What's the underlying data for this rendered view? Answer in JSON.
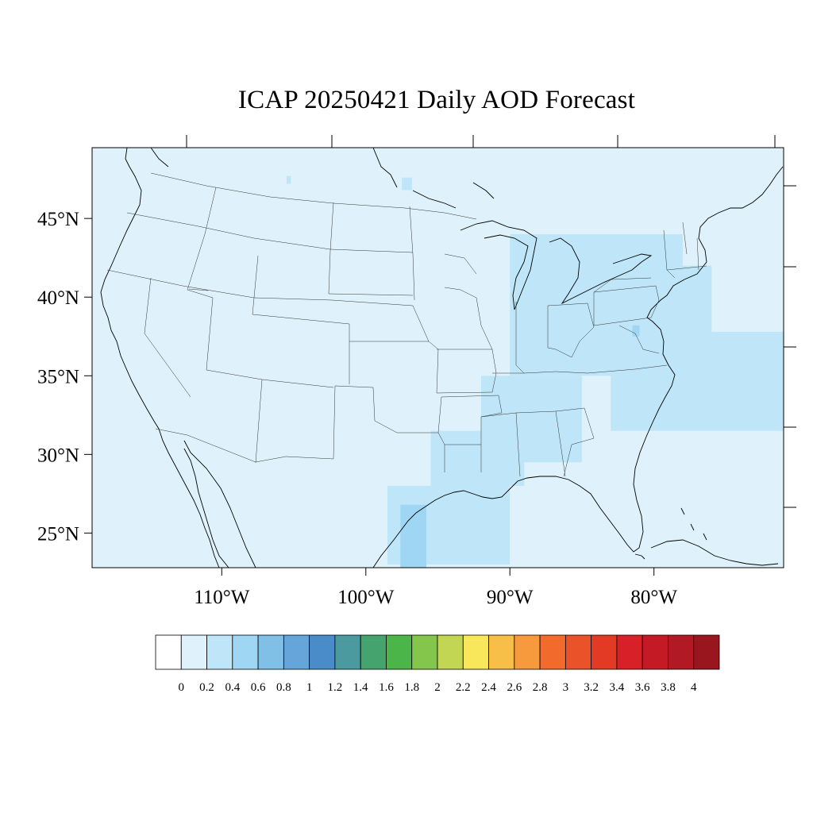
{
  "title": "ICAP 20250421 Daily AOD Forecast",
  "colors": {
    "ocean_background": "#dff2fb",
    "level_0_2_to_0_4": "#bfe6f8",
    "level_0_4_to_0_6": "#9fd6f3"
  },
  "map": {
    "lon_range": [
      -119,
      -71
    ],
    "lat_range": [
      22.8,
      49.5
    ],
    "lat_ticks": [
      {
        "value": 45,
        "label": "45°N"
      },
      {
        "value": 40,
        "label": "40°N"
      },
      {
        "value": 35,
        "label": "35°N"
      },
      {
        "value": 30,
        "label": "30°N"
      },
      {
        "value": 25,
        "label": "25°N"
      }
    ],
    "lon_ticks": [
      {
        "value": -110,
        "label": "110°W"
      },
      {
        "value": -100,
        "label": "100°W"
      },
      {
        "value": -90,
        "label": "90°W"
      },
      {
        "value": -80,
        "label": "80°W"
      }
    ]
  },
  "aod_regions": [
    {
      "level": "0.2-0.4",
      "lon": [
        -105.5,
        -105.2
      ],
      "lat": [
        47.2,
        47.7
      ]
    },
    {
      "level": "0.2-0.4",
      "lon": [
        -97.5,
        -96.8
      ],
      "lat": [
        46.8,
        47.6
      ]
    },
    {
      "level": "0.2-0.4",
      "lon": [
        -90,
        -78
      ],
      "lat": [
        35,
        44
      ]
    },
    {
      "level": "0.2-0.4",
      "lon": [
        -83,
        -70
      ],
      "lat": [
        31.5,
        37.8
      ]
    },
    {
      "level": "0.2-0.4",
      "lon": [
        -92,
        -85
      ],
      "lat": [
        29.5,
        35
      ]
    },
    {
      "level": "0.2-0.4",
      "lon": [
        -98.5,
        -90
      ],
      "lat": [
        23,
        28
      ]
    },
    {
      "level": "0.2-0.4",
      "lon": [
        -95.5,
        -89
      ],
      "lat": [
        28,
        31.5
      ]
    },
    {
      "level": "0.2-0.4",
      "lon": [
        -80,
        -76
      ],
      "lat": [
        37,
        42
      ]
    },
    {
      "level": "0.4-0.6",
      "lon": [
        -97.6,
        -95.8
      ],
      "lat": [
        22.8,
        26.8
      ]
    },
    {
      "level": "0.4-0.6",
      "lon": [
        -81.5,
        -81
      ],
      "lat": [
        37.5,
        38.2
      ]
    }
  ],
  "colorbar": {
    "colors": [
      "#ffffff",
      "#dff2fb",
      "#bfe6f8",
      "#9fd6f3",
      "#80bfe6",
      "#65a5d9",
      "#4a8bca",
      "#4a9aa0",
      "#45a36e",
      "#4bb54a",
      "#84c54b",
      "#c2d654",
      "#f8e75a",
      "#f8bf48",
      "#f79a3d",
      "#f26b2c",
      "#ea5229",
      "#e33a26",
      "#d72028",
      "#c41a26",
      "#b11924",
      "#9a161f"
    ],
    "labels": [
      "0",
      "0.2",
      "0.4",
      "0.6",
      "0.8",
      "1",
      "1.2",
      "1.4",
      "1.6",
      "1.8",
      "2",
      "2.2",
      "2.4",
      "2.6",
      "2.8",
      "3",
      "3.2",
      "3.4",
      "3.6",
      "3.8",
      "4"
    ]
  }
}
